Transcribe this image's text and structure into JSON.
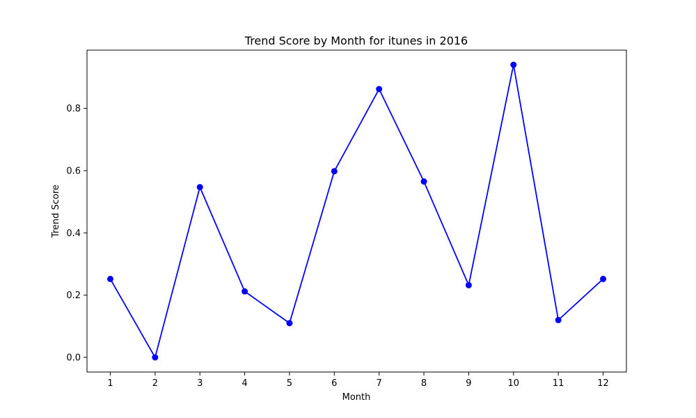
{
  "chart_data": {
    "type": "line",
    "title": "Trend Score by Month for itunes in 2016",
    "xlabel": "Month",
    "ylabel": "Trend Score",
    "x": [
      1,
      2,
      3,
      4,
      5,
      6,
      7,
      8,
      9,
      10,
      11,
      12
    ],
    "x_ticks": [
      "1",
      "2",
      "3",
      "4",
      "5",
      "6",
      "7",
      "8",
      "9",
      "10",
      "11",
      "12"
    ],
    "xlim": [
      0.48,
      12.52
    ],
    "y_ticks": [
      "0.0",
      "0.2",
      "0.4",
      "0.6",
      "0.8"
    ],
    "ylim": [
      -0.047,
      0.987
    ],
    "grid": false,
    "series": [
      {
        "values": [
          0.252,
          0.0,
          0.547,
          0.212,
          0.11,
          0.598,
          0.862,
          0.565,
          0.232,
          0.94,
          0.12,
          0.252
        ],
        "color": "#0000ff",
        "marker": "circle"
      }
    ]
  }
}
